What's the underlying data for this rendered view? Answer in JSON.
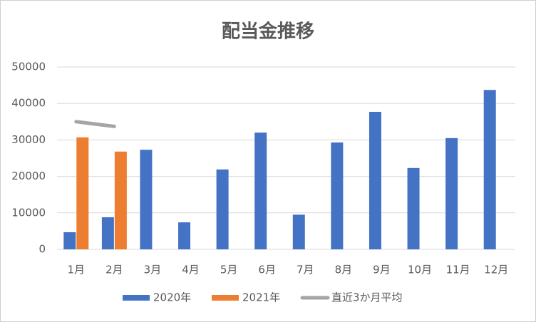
{
  "chart_data": {
    "type": "bar",
    "title": "配当金推移",
    "categories": [
      "1月",
      "2月",
      "3月",
      "4月",
      "5月",
      "6月",
      "7月",
      "8月",
      "9月",
      "10月",
      "11月",
      "12月"
    ],
    "series": [
      {
        "name": "2020年",
        "type": "bar",
        "color": "#4472c4",
        "values": [
          4700,
          8800,
          27300,
          7400,
          21900,
          32000,
          9500,
          29300,
          37700,
          22300,
          30500,
          43700
        ]
      },
      {
        "name": "2021年",
        "type": "bar",
        "color": "#ed7d31",
        "values": [
          30700,
          26800,
          null,
          null,
          null,
          null,
          null,
          null,
          null,
          null,
          null,
          null
        ]
      },
      {
        "name": "直近3か月平均",
        "type": "line",
        "color": "#a5a5a5",
        "values": [
          35000,
          33700,
          null,
          null,
          null,
          null,
          null,
          null,
          null,
          null,
          null,
          null
        ]
      }
    ],
    "ylim": [
      0,
      50000
    ],
    "yticks": [
      0,
      10000,
      20000,
      30000,
      40000,
      50000
    ],
    "grid": true,
    "legend": "bottom"
  }
}
